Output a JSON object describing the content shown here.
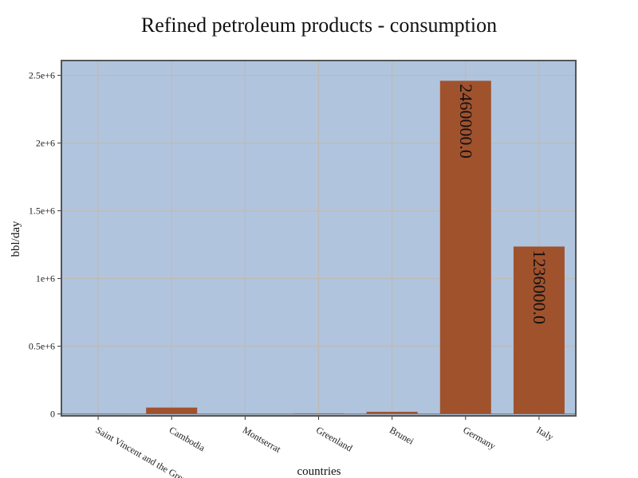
{
  "chart_data": {
    "type": "bar",
    "title": "Refined petroleum products - consumption",
    "xlabel": "countries",
    "ylabel": "bbl/day",
    "categories": [
      "Saint Vincent and the Grenadines",
      "Cambodia",
      "Montserrat",
      "Greenland",
      "Brunei",
      "Germany",
      "Italy"
    ],
    "values": [
      1500,
      47000,
      500,
      4000,
      16000,
      2460000,
      1236000
    ],
    "data_labels": [
      "",
      "",
      "",
      "",
      "",
      "2460000.0",
      "1236000.0"
    ],
    "ylim": [
      0,
      2600000
    ],
    "yticks": [
      0,
      500000,
      1000000,
      1500000,
      2000000,
      2500000
    ],
    "ytick_labels": [
      "0",
      "0.5e+6",
      "1e+6",
      "1.5e+6",
      "2e+6",
      "2.5e+6"
    ],
    "grid": true,
    "legend": "none",
    "colors": {
      "plot_background": "#b0c4de",
      "bar": "#a0522d",
      "grid": "#c0b8b0",
      "frame": "#555555"
    }
  }
}
